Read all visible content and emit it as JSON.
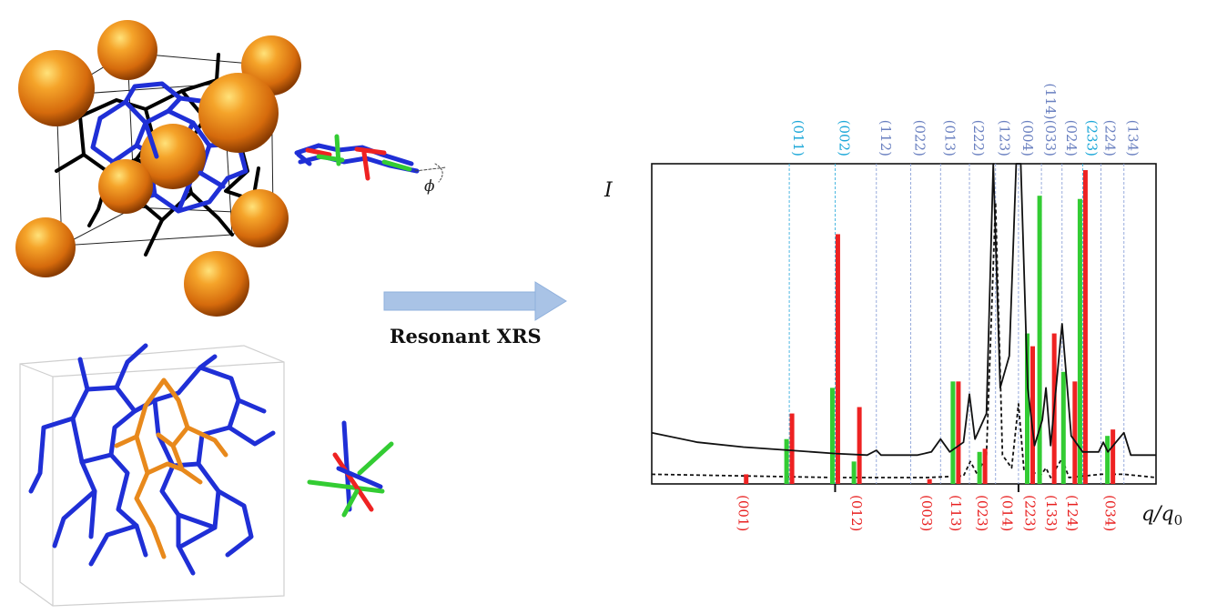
{
  "process_label": "Resonant  XRS",
  "phi_symbol": "ϕ",
  "colors": {
    "sphere": "#e07a10",
    "blue_network": "#1f2fd6",
    "black_network": "#000000",
    "orange_network": "#e8891c",
    "green": "#33cc33",
    "red": "#ee2222",
    "arrow": "#9ab8e0",
    "top_label_cyan": "#1ba7d8",
    "top_label_blue": "#6a80c0",
    "bottom_label_red": "#e81f1f"
  },
  "chart_data": {
    "type": "bar",
    "ylabel": "I",
    "xlabel_main": "q/q",
    "xlabel_sub": "0",
    "top_labels": [
      {
        "text": "(011)",
        "x": 3.0,
        "color": "cyan"
      },
      {
        "text": "(002)",
        "x": 4.0,
        "color": "cyan"
      },
      {
        "text": "(112)",
        "x": 4.9,
        "color": "blue"
      },
      {
        "text": "(022)",
        "x": 5.65,
        "color": "blue"
      },
      {
        "text": "(013)",
        "x": 6.3,
        "color": "blue"
      },
      {
        "text": "(222)",
        "x": 6.93,
        "color": "blue"
      },
      {
        "text": "(123)",
        "x": 7.5,
        "color": "blue"
      },
      {
        "text": "(004)",
        "x": 8.0,
        "color": "blue"
      },
      {
        "text": "(114)(033)",
        "x": 8.5,
        "color": "blue"
      },
      {
        "text": "(024)",
        "x": 8.95,
        "color": "blue"
      },
      {
        "text": "(233)",
        "x": 9.4,
        "color": "cyan"
      },
      {
        "text": "(224)",
        "x": 9.8,
        "color": "blue"
      },
      {
        "text": "(134)",
        "x": 10.3,
        "color": "blue"
      }
    ],
    "bottom_labels": [
      {
        "text": "(001)",
        "x": 2.0
      },
      {
        "text": "(012)",
        "x": 4.47
      },
      {
        "text": "(003)",
        "x": 6.0
      },
      {
        "text": "(113)",
        "x": 6.63
      },
      {
        "text": "(023)",
        "x": 7.21
      },
      {
        "text": "(014)",
        "x": 7.75
      },
      {
        "text": "(223)",
        "x": 8.25
      },
      {
        "text": "(133)",
        "x": 8.72
      },
      {
        "text": "(124)",
        "x": 9.17
      },
      {
        "text": "(034)",
        "x": 10.0
      }
    ],
    "major_ticks": [
      4.0,
      8.0
    ],
    "green_bars": [
      {
        "x": 3.0,
        "value": 0.14
      },
      {
        "x": 4.0,
        "value": 0.3
      },
      {
        "x": 4.47,
        "value": 0.07
      },
      {
        "x": 6.63,
        "value": 0.32
      },
      {
        "x": 7.21,
        "value": 0.1
      },
      {
        "x": 8.25,
        "value": 0.47
      },
      {
        "x": 8.52,
        "value": 0.9
      },
      {
        "x": 9.04,
        "value": 0.35
      },
      {
        "x": 9.4,
        "value": 0.89
      },
      {
        "x": 10.0,
        "value": 0.15
      }
    ],
    "red_bars": [
      {
        "x": 2.0,
        "value": 0.03
      },
      {
        "x": 3.0,
        "value": 0.22
      },
      {
        "x": 4.0,
        "value": 0.78
      },
      {
        "x": 4.47,
        "value": 0.24
      },
      {
        "x": 6.0,
        "value": 0.015
      },
      {
        "x": 6.63,
        "value": 0.32
      },
      {
        "x": 7.21,
        "value": 0.11
      },
      {
        "x": 8.25,
        "value": 0.43
      },
      {
        "x": 8.72,
        "value": 0.47
      },
      {
        "x": 9.17,
        "value": 0.32
      },
      {
        "x": 9.4,
        "value": 0.98
      },
      {
        "x": 10.0,
        "value": 0.17
      }
    ],
    "solid_curve": [
      [
        0.0,
        0.16
      ],
      [
        1.0,
        0.13
      ],
      [
        2.0,
        0.115
      ],
      [
        3.0,
        0.105
      ],
      [
        4.0,
        0.095
      ],
      [
        4.7,
        0.09
      ],
      [
        4.9,
        0.105
      ],
      [
        5.0,
        0.09
      ],
      [
        5.65,
        0.09
      ],
      [
        5.8,
        0.09
      ],
      [
        6.1,
        0.1
      ],
      [
        6.3,
        0.14
      ],
      [
        6.5,
        0.1
      ],
      [
        6.8,
        0.13
      ],
      [
        6.93,
        0.28
      ],
      [
        7.05,
        0.14
      ],
      [
        7.3,
        0.22
      ],
      [
        7.45,
        1.0
      ],
      [
        7.6,
        0.3
      ],
      [
        7.8,
        0.4
      ],
      [
        7.95,
        1.0
      ],
      [
        8.05,
        1.0
      ],
      [
        8.2,
        0.3
      ],
      [
        8.35,
        0.12
      ],
      [
        8.52,
        0.2
      ],
      [
        8.6,
        0.3
      ],
      [
        8.7,
        0.12
      ],
      [
        8.95,
        0.5
      ],
      [
        9.15,
        0.15
      ],
      [
        9.4,
        0.1
      ],
      [
        9.75,
        0.1
      ],
      [
        9.85,
        0.13
      ],
      [
        9.95,
        0.1
      ],
      [
        10.3,
        0.16
      ],
      [
        10.45,
        0.09
      ],
      [
        11.0,
        0.09
      ]
    ],
    "dashed_curve": [
      [
        0.0,
        0.03
      ],
      [
        2.0,
        0.025
      ],
      [
        4.0,
        0.02
      ],
      [
        6.0,
        0.02
      ],
      [
        6.8,
        0.025
      ],
      [
        6.95,
        0.07
      ],
      [
        7.1,
        0.03
      ],
      [
        7.3,
        0.09
      ],
      [
        7.5,
        0.88
      ],
      [
        7.65,
        0.09
      ],
      [
        7.85,
        0.05
      ],
      [
        8.0,
        0.25
      ],
      [
        8.12,
        0.04
      ],
      [
        8.5,
        0.03
      ],
      [
        8.6,
        0.05
      ],
      [
        8.7,
        0.02
      ],
      [
        8.95,
        0.08
      ],
      [
        9.1,
        0.02
      ],
      [
        9.8,
        0.03
      ],
      [
        10.3,
        0.03
      ],
      [
        11.0,
        0.02
      ]
    ],
    "xlim": [
      0.0,
      11.0
    ],
    "ylim": [
      0.0,
      1.0
    ],
    "grid": "dashed vertical lines at top-label positions"
  }
}
